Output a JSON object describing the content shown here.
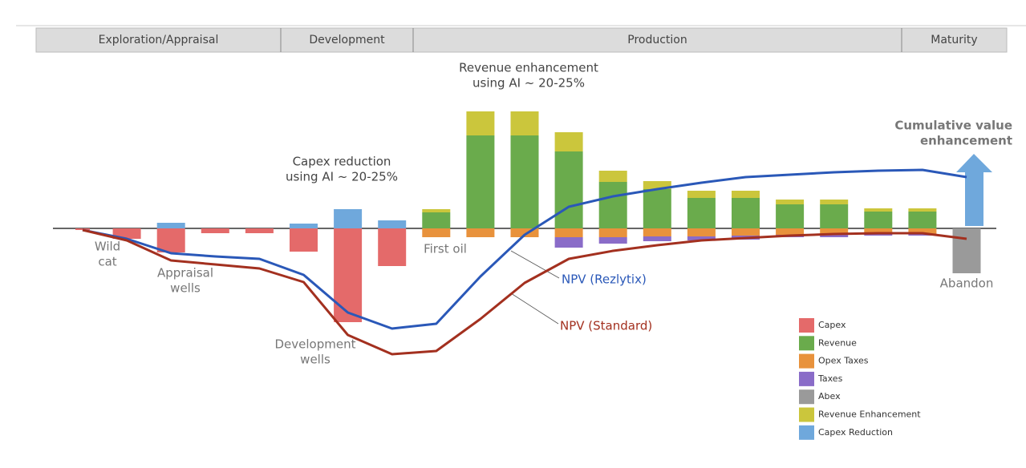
{
  "phases": [
    "Exploration/Appraisal",
    "Development",
    "Production",
    "Maturity"
  ],
  "chart_data": {
    "type": "bar",
    "stacked": true,
    "categories": [
      null,
      null,
      null,
      null,
      null,
      null,
      null,
      null,
      null,
      null,
      null,
      null,
      null,
      null,
      null,
      null,
      null,
      null,
      null,
      null,
      null
    ],
    "ylim": [
      -170,
      170
    ],
    "legend": "lower right",
    "series": [
      {
        "name": "Capex",
        "color": "#e46a6a",
        "values": [
          -2,
          -13,
          -30,
          -6,
          -6,
          -29,
          -117,
          -47,
          0,
          0,
          0,
          0,
          0,
          0,
          0,
          0,
          0,
          0,
          0,
          0,
          0
        ]
      },
      {
        "name": "Revenue",
        "color": "#6aab4c",
        "values": [
          0,
          0,
          0,
          0,
          0,
          0,
          0,
          0,
          20,
          116,
          116,
          96,
          58,
          49,
          38,
          38,
          30,
          30,
          21,
          21,
          0
        ]
      },
      {
        "name": "Opex Taxes",
        "color": "#e8923c",
        "values": [
          0,
          0,
          0,
          0,
          0,
          0,
          0,
          0,
          -11,
          -11,
          -11,
          -11,
          -11,
          -10,
          -10,
          -9,
          -8,
          -8,
          -7,
          -7,
          0
        ]
      },
      {
        "name": "Taxes",
        "color": "#8a6cc8",
        "values": [
          0,
          0,
          0,
          0,
          0,
          0,
          0,
          0,
          0,
          0,
          0,
          -13,
          -8,
          -6,
          -5,
          -5,
          -3,
          -3,
          -2,
          -2,
          0
        ]
      },
      {
        "name": "Abex",
        "color": "#9a9a9a",
        "values": [
          0,
          0,
          0,
          0,
          0,
          0,
          0,
          0,
          0,
          0,
          0,
          0,
          0,
          0,
          0,
          0,
          0,
          0,
          0,
          0,
          -56
        ]
      },
      {
        "name": "Revenue Enhancement",
        "color": "#cbc63c",
        "values": [
          0,
          0,
          0,
          0,
          0,
          0,
          0,
          0,
          4,
          30,
          30,
          24,
          14,
          10,
          9,
          9,
          6,
          6,
          4,
          4,
          0
        ]
      },
      {
        "name": "Capex Reduction",
        "color": "#6fa8dc",
        "values": [
          0,
          0,
          7,
          0,
          0,
          6,
          24,
          10,
          0,
          0,
          0,
          0,
          0,
          0,
          0,
          0,
          0,
          0,
          0,
          0,
          0
        ]
      }
    ],
    "lines": [
      {
        "name": "NPV (Rezlytix)",
        "color": "#2a58b8",
        "values": [
          -2,
          -13,
          -31,
          -35,
          -38,
          -58,
          -105,
          -125,
          -119,
          -60,
          -8,
          27,
          40,
          49,
          57,
          64,
          67,
          70,
          72,
          73,
          64
        ]
      },
      {
        "name": "NPV (Standard)",
        "color": "#a3301f",
        "values": [
          -2,
          -15,
          -40,
          -45,
          -50,
          -67,
          -133,
          -157,
          -153,
          -113,
          -68,
          -38,
          -28,
          -21,
          -15,
          -12,
          -9,
          -7,
          -6,
          -6,
          -13
        ]
      }
    ],
    "annotations": [
      {
        "text": [
          "Wild",
          "cat"
        ]
      },
      {
        "text": [
          "Appraisal",
          "wells"
        ]
      },
      {
        "text": [
          "Development",
          "wells"
        ]
      },
      {
        "text": [
          "Capex reduction",
          "using AI ~ 20-25%"
        ]
      },
      {
        "text": [
          "Revenue enhancement",
          "using AI ~ 20-25%"
        ]
      },
      {
        "text": [
          "First oil"
        ]
      },
      {
        "text": [
          "Abandon"
        ]
      },
      {
        "text": [
          "Cumulative value",
          "enhancement"
        ]
      }
    ]
  }
}
